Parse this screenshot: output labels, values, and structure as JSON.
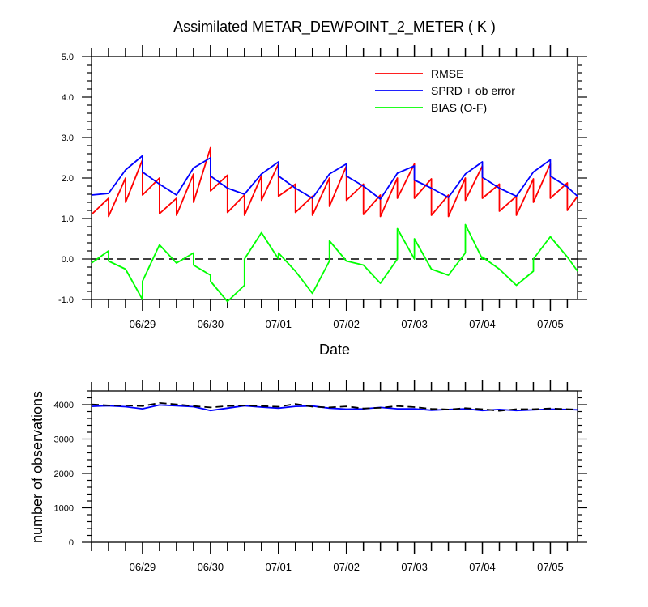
{
  "title": "Assimilated METAR_DEWPOINT_2_METER ( K )",
  "chart_data": [
    {
      "type": "line",
      "xlabel": "Date",
      "ylabel": "",
      "ylim": [
        -1.0,
        5.0
      ],
      "ytick_labels": [
        "-1.0",
        "0.0",
        "1.0",
        "2.0",
        "3.0",
        "4.0",
        "5.0"
      ],
      "ytick_values": [
        -1,
        0,
        1,
        2,
        3,
        4,
        5
      ],
      "xtick_labels": [
        "06/29",
        "06/30",
        "07/01",
        "07/02",
        "07/03",
        "07/04",
        "07/05"
      ],
      "xlim_days": [
        -0.75,
        6.4
      ],
      "legend_position": "top-right",
      "zero_line": "dashed",
      "series": [
        {
          "name": "RMSE",
          "color": "#ff0000",
          "x": [
            -0.75,
            -0.5,
            -0.5,
            -0.25,
            -0.25,
            0,
            0,
            0.25,
            0.25,
            0.5,
            0.5,
            0.75,
            0.75,
            1,
            1,
            1.25,
            1.25,
            1.5,
            1.5,
            1.75,
            1.75,
            2,
            2,
            2.25,
            2.25,
            2.5,
            2.5,
            2.75,
            2.75,
            3,
            3,
            3.25,
            3.25,
            3.5,
            3.5,
            3.75,
            3.75,
            4,
            4,
            4.25,
            4.25,
            4.5,
            4.5,
            4.75,
            4.75,
            5,
            5,
            5.25,
            5.25,
            5.5,
            5.5,
            5.75,
            5.75,
            6,
            6,
            6.25,
            6.25,
            6.4
          ],
          "y": [
            1.1,
            1.5,
            1.05,
            2.0,
            1.4,
            2.45,
            1.58,
            2.0,
            1.12,
            1.5,
            1.08,
            2.1,
            1.4,
            2.75,
            1.68,
            2.07,
            1.15,
            1.58,
            1.08,
            2.05,
            1.45,
            2.35,
            1.55,
            1.85,
            1.15,
            1.55,
            1.08,
            2.0,
            1.3,
            2.3,
            1.45,
            1.85,
            1.1,
            1.58,
            1.05,
            2.0,
            1.5,
            2.35,
            1.5,
            1.98,
            1.08,
            1.58,
            1.05,
            2.0,
            1.45,
            2.3,
            1.5,
            1.85,
            1.18,
            1.55,
            1.08,
            1.98,
            1.4,
            2.35,
            1.5,
            1.88,
            1.2,
            1.55
          ]
        },
        {
          "name": "SPRD + ob error",
          "color": "#0000ff",
          "x": [
            -0.75,
            -0.5,
            -0.25,
            0,
            0,
            0.25,
            0.5,
            0.75,
            1,
            1,
            1.25,
            1.5,
            1.75,
            2,
            2,
            2.25,
            2.5,
            2.75,
            3,
            3,
            3.25,
            3.5,
            3.75,
            4,
            4,
            4.25,
            4.5,
            4.75,
            5,
            5,
            5.25,
            5.5,
            5.75,
            6,
            6,
            6.25,
            6.4
          ],
          "y": [
            1.58,
            1.62,
            2.2,
            2.55,
            2.15,
            1.85,
            1.58,
            2.25,
            2.5,
            2.05,
            1.75,
            1.6,
            2.1,
            2.4,
            2.05,
            1.75,
            1.5,
            2.1,
            2.35,
            2.05,
            1.8,
            1.48,
            2.12,
            2.3,
            1.95,
            1.75,
            1.52,
            2.1,
            2.4,
            2.02,
            1.75,
            1.55,
            2.15,
            2.45,
            2.05,
            1.78,
            1.55
          ]
        },
        {
          "name": "BIAS (O-F)",
          "color": "#00ff00",
          "x": [
            -0.75,
            -0.5,
            -0.5,
            -0.25,
            0,
            0,
            0.25,
            0.5,
            0.75,
            0.75,
            1,
            1,
            1.25,
            1.5,
            1.5,
            1.75,
            2,
            2,
            2.25,
            2.5,
            2.75,
            2.75,
            3,
            3,
            3.25,
            3.5,
            3.75,
            3.75,
            4,
            4,
            4.25,
            4.5,
            4.75,
            4.75,
            5,
            5,
            5.25,
            5.5,
            5.75,
            5.75,
            6,
            6.25,
            6.4
          ],
          "y": [
            -0.1,
            0.2,
            -0.05,
            -0.25,
            -1.0,
            -0.55,
            0.35,
            -0.1,
            0.15,
            -0.15,
            -0.4,
            -0.55,
            -1.05,
            -0.65,
            0.0,
            0.65,
            0.0,
            0.15,
            -0.3,
            -0.85,
            -0.05,
            0.45,
            -0.05,
            -0.05,
            -0.15,
            -0.6,
            0.0,
            0.75,
            0.0,
            0.5,
            -0.25,
            -0.4,
            0.15,
            0.85,
            0.0,
            0.05,
            -0.25,
            -0.65,
            -0.3,
            0.0,
            0.55,
            0.05,
            -0.3
          ]
        }
      ]
    },
    {
      "type": "line",
      "xlabel": "",
      "ylabel": "number of observations",
      "ylim": [
        0,
        4400
      ],
      "ytick_labels": [
        "0",
        "1000",
        "2000",
        "3000",
        "4000"
      ],
      "ytick_values": [
        0,
        1000,
        2000,
        3000,
        4000
      ],
      "xtick_labels": [
        "06/29",
        "06/30",
        "07/01",
        "07/02",
        "07/03",
        "07/04",
        "07/05"
      ],
      "xlim_days": [
        -0.75,
        6.4
      ],
      "series": [
        {
          "color": "#0000ff",
          "x": [
            -0.75,
            -0.5,
            -0.25,
            0,
            0.25,
            0.5,
            0.75,
            1,
            1.25,
            1.5,
            1.75,
            2,
            2.25,
            2.5,
            2.75,
            3,
            3.25,
            3.5,
            3.75,
            4,
            4.25,
            4.5,
            4.75,
            5,
            5.25,
            5.5,
            5.75,
            6,
            6.25,
            6.4
          ],
          "y": [
            3950,
            3970,
            3940,
            3880,
            3990,
            3970,
            3940,
            3830,
            3900,
            3970,
            3930,
            3900,
            3950,
            3960,
            3900,
            3870,
            3880,
            3920,
            3880,
            3880,
            3840,
            3860,
            3880,
            3830,
            3860,
            3830,
            3850,
            3870,
            3860,
            3850
          ]
        },
        {
          "color": "#000000",
          "dashed": true,
          "x": [
            -0.75,
            -0.5,
            -0.25,
            0,
            0.25,
            0.5,
            0.75,
            1,
            1.25,
            1.5,
            1.75,
            2,
            2.25,
            2.5,
            2.75,
            3,
            3.25,
            3.5,
            3.75,
            4,
            4.25,
            4.5,
            4.75,
            5,
            5.25,
            5.5,
            5.75,
            6,
            6.25,
            6.4
          ],
          "y": [
            4010,
            3980,
            3980,
            3960,
            4050,
            4010,
            3960,
            3920,
            3960,
            3980,
            3960,
            3940,
            4020,
            3940,
            3920,
            3950,
            3890,
            3910,
            3960,
            3930,
            3880,
            3860,
            3900,
            3870,
            3820,
            3870,
            3870,
            3890,
            3870,
            3860
          ]
        }
      ]
    }
  ]
}
